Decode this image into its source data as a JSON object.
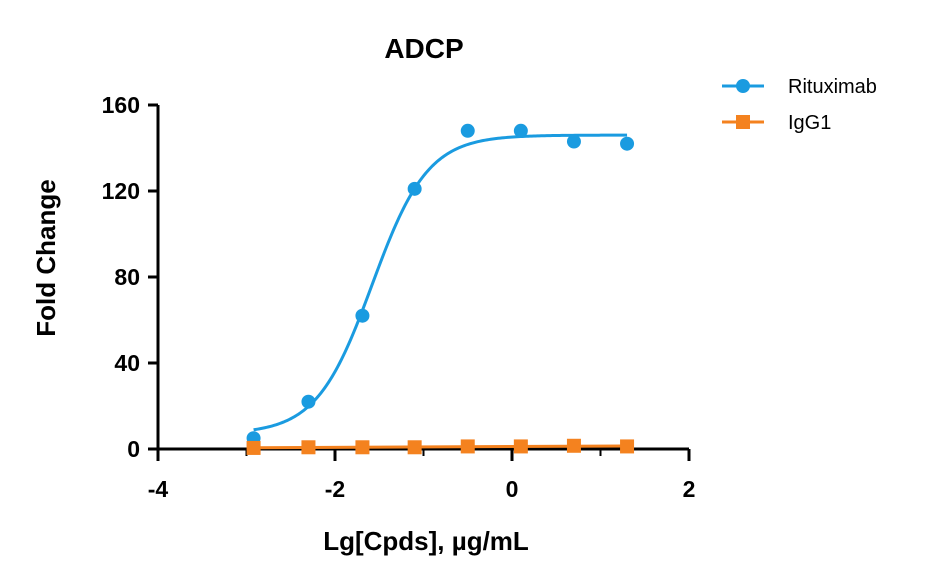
{
  "chart_data": {
    "type": "scatter",
    "title": "ADCP",
    "xlabel": "Lg[Cpds], µg/mL",
    "ylabel": "Fold Change",
    "xlim": [
      -4,
      2
    ],
    "ylim": [
      0,
      160
    ],
    "xticks": [
      -4,
      -2,
      0,
      2
    ],
    "yticks": [
      0,
      40,
      80,
      120,
      160
    ],
    "xtick_labels": [
      "-4",
      "-2",
      "0",
      "2"
    ],
    "ytick_labels": [
      "0",
      "40",
      "80",
      "120",
      "160"
    ],
    "grid": false,
    "legend_position": "top-right",
    "series": [
      {
        "name": "Rituximab",
        "color": "#1a9be0",
        "marker": "circle",
        "x": [
          -2.92,
          -2.3,
          -1.69,
          -1.1,
          -0.5,
          0.1,
          0.7,
          1.3
        ],
        "y": [
          5,
          22,
          62,
          121,
          148,
          148,
          143,
          142
        ],
        "fit": {
          "model": "4PL",
          "bottom": 7,
          "top": 146,
          "logEC50": -1.58,
          "hill": 1.38,
          "x_range": [
            -2.92,
            1.3
          ]
        }
      },
      {
        "name": "IgG1",
        "color": "#f4821f",
        "marker": "square",
        "x": [
          -2.92,
          -2.3,
          -1.69,
          -1.1,
          -0.5,
          0.1,
          0.7,
          1.3
        ],
        "y": [
          0.5,
          0.8,
          0.8,
          0.8,
          1.2,
          1.2,
          1.5,
          1.2
        ],
        "fit": {
          "model": "linear",
          "x_range": [
            -2.92,
            1.3
          ]
        }
      }
    ]
  }
}
